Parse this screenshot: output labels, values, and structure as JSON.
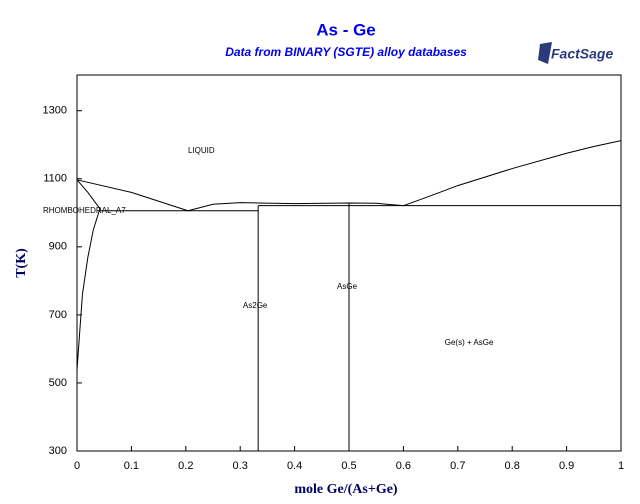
{
  "chart_data": {
    "type": "line",
    "title": "As - Ge",
    "subtitle": "Data from BINARY (SGTE) alloy databases",
    "logo": "FactSage",
    "x_label": "mole Ge/(As+Ge)",
    "y_label": "T(K)",
    "xlim": [
      0,
      1
    ],
    "ylim": [
      300,
      1405
    ],
    "xticks": [
      0,
      0.1,
      0.2,
      0.3,
      0.4,
      0.5,
      0.6,
      0.7,
      0.8,
      0.9,
      1
    ],
    "yticks": [
      300,
      500,
      700,
      900,
      1100,
      1300
    ],
    "series": [
      {
        "color": "#000000",
        "x": [
          0,
          0.1,
          0.204
        ],
        "values": [
          1097,
          1060,
          1006
        ]
      },
      {
        "color": "#000000",
        "x": [
          0,
          0.02,
          0.042
        ],
        "values": [
          1097,
          1060,
          1012
        ]
      },
      {
        "color": "#000000",
        "x": [
          0,
          0.005,
          0.01,
          0.02,
          0.03,
          0.042
        ],
        "values": [
          538,
          650,
          760,
          870,
          950,
          1012
        ]
      },
      {
        "color": "#000000",
        "x": [
          0.042,
          0.333
        ],
        "values": [
          1006,
          1006
        ]
      },
      {
        "color": "#000000",
        "x": [
          0.204,
          0.25,
          0.3,
          0.333,
          0.4,
          0.5,
          0.55,
          0.6
        ],
        "values": [
          1006,
          1025,
          1030,
          1029,
          1027,
          1029,
          1028,
          1021
        ]
      },
      {
        "color": "#000000",
        "x": [
          0.333,
          1
        ],
        "values": [
          1021,
          1021
        ]
      },
      {
        "color": "#000000",
        "x": [
          0.6,
          0.65,
          0.7,
          0.8,
          0.9,
          0.95,
          1
        ],
        "values": [
          1021,
          1050,
          1080,
          1130,
          1175,
          1195,
          1212
        ]
      },
      {
        "color": "#000000",
        "x": [
          0.333,
          0.333
        ],
        "values": [
          300,
          1021
        ]
      },
      {
        "color": "#000000",
        "x": [
          0.5,
          0.5
        ],
        "values": [
          300,
          1028
        ]
      }
    ],
    "annotations": [
      {
        "text": "LIQUID",
        "x": 0.204,
        "y": 1182
      },
      {
        "text": "RHOMBOHEDRAL_A7",
        "x": -0.0625,
        "y": 1006
      },
      {
        "text": "As2Ge",
        "x": 0.305,
        "y": 726
      },
      {
        "text": "AsGe",
        "x": 0.478,
        "y": 782
      },
      {
        "text": "Ge(s) + AsGe",
        "x": 0.676,
        "y": 618
      }
    ]
  }
}
